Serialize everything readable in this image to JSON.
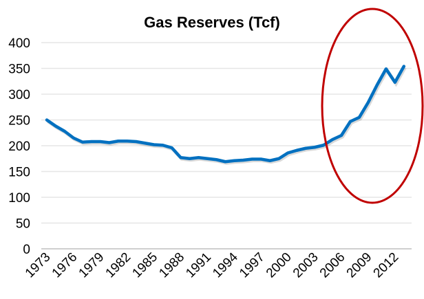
{
  "chart_data": {
    "type": "line",
    "title": "Gas Reserves (Tcf)",
    "xlabel": "",
    "ylabel": "",
    "ylim": [
      0,
      400
    ],
    "yticks": [
      "0",
      "50",
      "100",
      "150",
      "200",
      "250",
      "300",
      "350",
      "400"
    ],
    "xtick_labels": [
      "1973",
      "1976",
      "1979",
      "1982",
      "1985",
      "1988",
      "1991",
      "1994",
      "1997",
      "2000",
      "2003",
      "2006",
      "2009",
      "2012"
    ],
    "grid": true,
    "legend": "none",
    "x": [
      1973,
      1974,
      1975,
      1976,
      1977,
      1978,
      1979,
      1980,
      1981,
      1982,
      1983,
      1984,
      1985,
      1986,
      1987,
      1988,
      1989,
      1990,
      1991,
      1992,
      1993,
      1994,
      1995,
      1996,
      1997,
      1998,
      1999,
      2000,
      2001,
      2002,
      2003,
      2004,
      2005,
      2006,
      2007,
      2008,
      2009,
      2010,
      2011,
      2012,
      2013
    ],
    "series": [
      {
        "values": [
          250,
          238,
          228,
          215,
          207,
          208,
          208,
          206,
          209,
          209,
          208,
          205,
          202,
          201,
          196,
          177,
          175,
          177,
          175,
          173,
          169,
          171,
          172,
          174,
          174,
          171,
          175,
          186,
          191,
          195,
          197,
          201,
          212,
          220,
          247,
          255,
          284,
          318,
          349,
          323,
          354
        ],
        "color": "#0070C0"
      }
    ],
    "annotation": {
      "shape": "ellipse",
      "color": "#C00000",
      "highlights": [
        2005,
        2013
      ]
    }
  }
}
